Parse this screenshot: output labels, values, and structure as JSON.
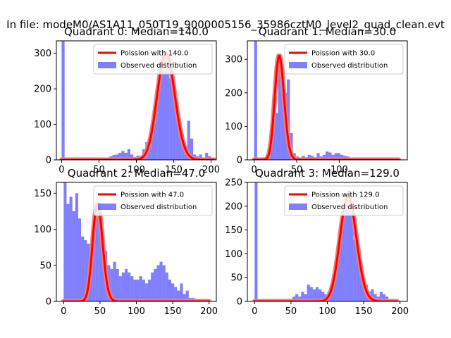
{
  "figure_title": "In file: modeM0/AS1A11_050T19_9000005156_35986cztM0_level2_quad_clean.evt",
  "colors": {
    "hist_fill": "#0000ff",
    "hist_alpha": 0.5,
    "curve": "#ff0000",
    "curve_halo": "#f08080"
  },
  "chart_data": [
    {
      "type": "bar",
      "title": "Quadrant 0: Median=140.0",
      "xlim": [
        -7,
        207
      ],
      "ylim": [
        0,
        335
      ],
      "xticks": [
        0,
        50,
        100,
        150,
        200
      ],
      "yticks": [
        0,
        100,
        200,
        300
      ],
      "bin_width": 4,
      "bins": [
        [
          0,
          335
        ],
        [
          4,
          0
        ],
        [
          8,
          0
        ],
        [
          12,
          0
        ],
        [
          16,
          0
        ],
        [
          20,
          0
        ],
        [
          24,
          0
        ],
        [
          28,
          0
        ],
        [
          32,
          0
        ],
        [
          36,
          0
        ],
        [
          40,
          0
        ],
        [
          44,
          0
        ],
        [
          48,
          0
        ],
        [
          52,
          0
        ],
        [
          56,
          0
        ],
        [
          60,
          5
        ],
        [
          64,
          10
        ],
        [
          68,
          14
        ],
        [
          72,
          15
        ],
        [
          76,
          20
        ],
        [
          80,
          25
        ],
        [
          84,
          20
        ],
        [
          88,
          30
        ],
        [
          92,
          15
        ],
        [
          96,
          8
        ],
        [
          100,
          12
        ],
        [
          104,
          5
        ],
        [
          108,
          30
        ],
        [
          112,
          50
        ],
        [
          116,
          60
        ],
        [
          120,
          90
        ],
        [
          124,
          130
        ],
        [
          128,
          200
        ],
        [
          132,
          260
        ],
        [
          136,
          300
        ],
        [
          140,
          260
        ],
        [
          144,
          230
        ],
        [
          148,
          220
        ],
        [
          152,
          140
        ],
        [
          156,
          80
        ],
        [
          160,
          50
        ],
        [
          164,
          30
        ],
        [
          168,
          110
        ],
        [
          172,
          60
        ],
        [
          176,
          15
        ],
        [
          180,
          10
        ],
        [
          184,
          15
        ],
        [
          188,
          0
        ],
        [
          192,
          20
        ],
        [
          196,
          10
        ],
        [
          200,
          5
        ]
      ],
      "curve": {
        "label": "Poission with 140.0",
        "mean": 140.0,
        "x_range": [
          0,
          204
        ]
      },
      "legend": {
        "curve_label": "Poission with 140.0",
        "hist_label": "Observed distribution",
        "loc": "upper right"
      }
    },
    {
      "type": "bar",
      "title": "Quadrant 1: Median=30.0",
      "xlim": [
        -8,
        180
      ],
      "ylim": [
        0,
        355
      ],
      "xticks": [
        0,
        50,
        100
      ],
      "yticks": [
        0,
        100,
        200,
        300
      ],
      "bin_width": 3.5,
      "bins": [
        [
          0,
          355
        ],
        [
          3.5,
          0
        ],
        [
          7,
          0
        ],
        [
          10.5,
          5
        ],
        [
          14,
          10
        ],
        [
          17.5,
          25
        ],
        [
          21,
          170
        ],
        [
          24.5,
          140
        ],
        [
          28,
          310
        ],
        [
          31.5,
          245
        ],
        [
          35,
          200
        ],
        [
          38.5,
          240
        ],
        [
          42,
          80
        ],
        [
          45.5,
          20
        ],
        [
          49,
          10
        ],
        [
          52.5,
          5
        ],
        [
          56,
          12
        ],
        [
          59.5,
          8
        ],
        [
          63,
          15
        ],
        [
          66.5,
          12
        ],
        [
          70,
          8
        ],
        [
          73.5,
          20
        ],
        [
          77,
          10
        ],
        [
          80.5,
          15
        ],
        [
          84,
          25
        ],
        [
          87.5,
          22
        ],
        [
          91,
          15
        ],
        [
          94.5,
          20
        ],
        [
          98,
          20
        ],
        [
          101.5,
          15
        ],
        [
          105,
          12
        ],
        [
          108.5,
          10
        ],
        [
          112,
          5
        ],
        [
          115.5,
          3
        ]
      ],
      "curve": {
        "label": "Poission with 30.0",
        "mean": 30.0,
        "x_range": [
          0,
          170
        ]
      },
      "legend": {
        "curve_label": "Poission with 30.0",
        "hist_label": "Observed distribution",
        "loc": "upper right"
      }
    },
    {
      "type": "bar",
      "title": "Quadrant 2: Median=47.0",
      "xlim": [
        -10,
        210
      ],
      "ylim": [
        0,
        165
      ],
      "xticks": [
        0,
        50,
        100,
        150,
        200
      ],
      "yticks": [
        0,
        50,
        100,
        150
      ],
      "bin_width": 4,
      "bins": [
        [
          0,
          165
        ],
        [
          4,
          135
        ],
        [
          8,
          145
        ],
        [
          12,
          125
        ],
        [
          16,
          150
        ],
        [
          20,
          115
        ],
        [
          24,
          90
        ],
        [
          28,
          85
        ],
        [
          32,
          80
        ],
        [
          36,
          60
        ],
        [
          40,
          120
        ],
        [
          44,
          135
        ],
        [
          48,
          130
        ],
        [
          52,
          100
        ],
        [
          56,
          70
        ],
        [
          60,
          50
        ],
        [
          64,
          45
        ],
        [
          68,
          55
        ],
        [
          72,
          45
        ],
        [
          76,
          35
        ],
        [
          80,
          40
        ],
        [
          84,
          45
        ],
        [
          88,
          40
        ],
        [
          92,
          35
        ],
        [
          96,
          30
        ],
        [
          100,
          30
        ],
        [
          104,
          35
        ],
        [
          108,
          30
        ],
        [
          112,
          25
        ],
        [
          116,
          30
        ],
        [
          120,
          40
        ],
        [
          124,
          45
        ],
        [
          128,
          50
        ],
        [
          132,
          55
        ],
        [
          136,
          50
        ],
        [
          140,
          40
        ],
        [
          144,
          30
        ],
        [
          148,
          25
        ],
        [
          152,
          20
        ],
        [
          156,
          15
        ],
        [
          160,
          25
        ],
        [
          164,
          10
        ],
        [
          168,
          15
        ],
        [
          172,
          5
        ],
        [
          176,
          5
        ],
        [
          180,
          3
        ],
        [
          184,
          2
        ]
      ],
      "curve": {
        "label": "Poission with 47.0",
        "mean": 47.0,
        "x_range": [
          0,
          200
        ]
      },
      "legend": {
        "curve_label": "Poission with 47.0",
        "hist_label": "Observed distribution",
        "loc": "upper right"
      }
    },
    {
      "type": "bar",
      "title": "Quadrant 3: Median=129.0",
      "xlim": [
        -10,
        210
      ],
      "ylim": [
        0,
        250
      ],
      "xticks": [
        0,
        50,
        100,
        150,
        200
      ],
      "yticks": [
        0,
        50,
        100,
        150,
        200,
        250
      ],
      "bin_width": 4,
      "bins": [
        [
          0,
          250
        ],
        [
          4,
          0
        ],
        [
          8,
          0
        ],
        [
          12,
          0
        ],
        [
          16,
          0
        ],
        [
          20,
          0
        ],
        [
          24,
          0
        ],
        [
          28,
          0
        ],
        [
          32,
          0
        ],
        [
          36,
          0
        ],
        [
          40,
          0
        ],
        [
          44,
          0
        ],
        [
          48,
          5
        ],
        [
          52,
          10
        ],
        [
          56,
          15
        ],
        [
          60,
          10
        ],
        [
          64,
          20
        ],
        [
          68,
          15
        ],
        [
          72,
          35
        ],
        [
          76,
          30
        ],
        [
          80,
          25
        ],
        [
          84,
          30
        ],
        [
          88,
          25
        ],
        [
          92,
          20
        ],
        [
          96,
          15
        ],
        [
          100,
          20
        ],
        [
          104,
          25
        ],
        [
          108,
          60
        ],
        [
          112,
          90
        ],
        [
          116,
          140
        ],
        [
          120,
          170
        ],
        [
          124,
          220
        ],
        [
          128,
          200
        ],
        [
          132,
          190
        ],
        [
          136,
          130
        ],
        [
          140,
          100
        ],
        [
          144,
          60
        ],
        [
          148,
          40
        ],
        [
          152,
          35
        ],
        [
          156,
          20
        ],
        [
          160,
          25
        ],
        [
          164,
          15
        ],
        [
          168,
          10
        ],
        [
          172,
          20
        ],
        [
          176,
          15
        ],
        [
          180,
          10
        ],
        [
          184,
          5
        ]
      ],
      "curve": {
        "label": "Poission with 129.0",
        "mean": 129.0,
        "x_range": [
          0,
          196
        ]
      },
      "legend": {
        "curve_label": "Poission with 129.0",
        "hist_label": "Observed distribution",
        "loc": "upper right"
      }
    }
  ]
}
